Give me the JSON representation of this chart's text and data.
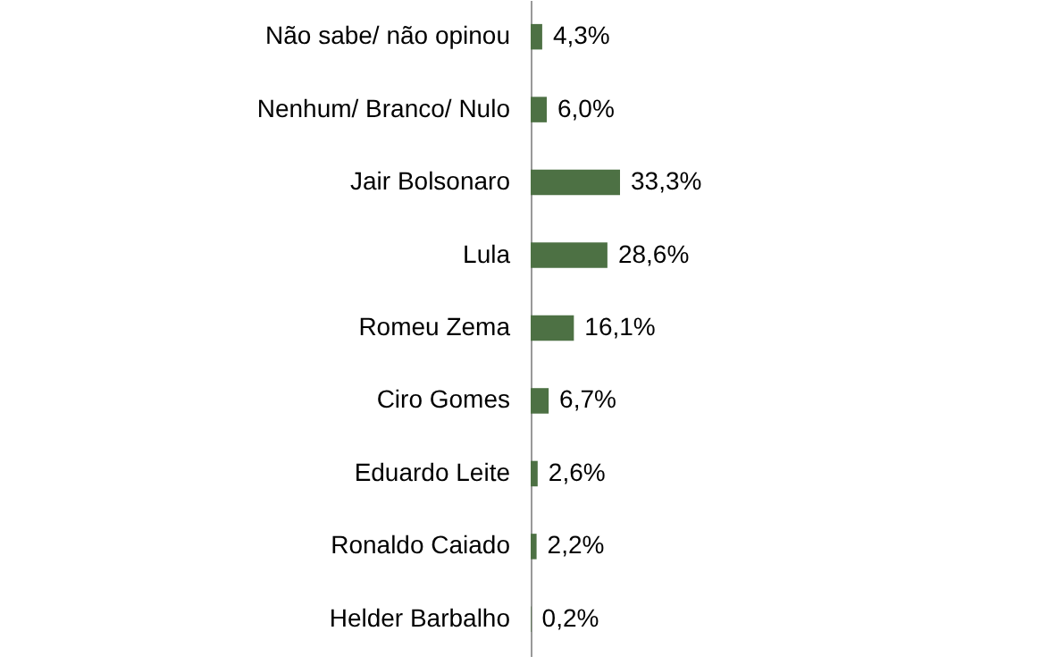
{
  "chart_data": {
    "type": "bar",
    "orientation": "horizontal",
    "categories": [
      "Não sabe/ não opinou",
      "Nenhum/ Branco/ Nulo",
      "Jair Bolsonaro",
      "Lula",
      "Romeu Zema",
      "Ciro Gomes",
      "Eduardo Leite",
      "Ronaldo Caiado",
      "Helder Barbalho"
    ],
    "values": [
      4.3,
      6.0,
      33.3,
      28.6,
      16.1,
      6.7,
      2.6,
      2.2,
      0.2
    ],
    "value_labels": [
      "4,3%",
      "6,0%",
      "33,3%",
      "28,6%",
      "16,1%",
      "6,7%",
      "2,6%",
      "2,2%",
      "0,2%"
    ],
    "color": "#4d7144"
  }
}
